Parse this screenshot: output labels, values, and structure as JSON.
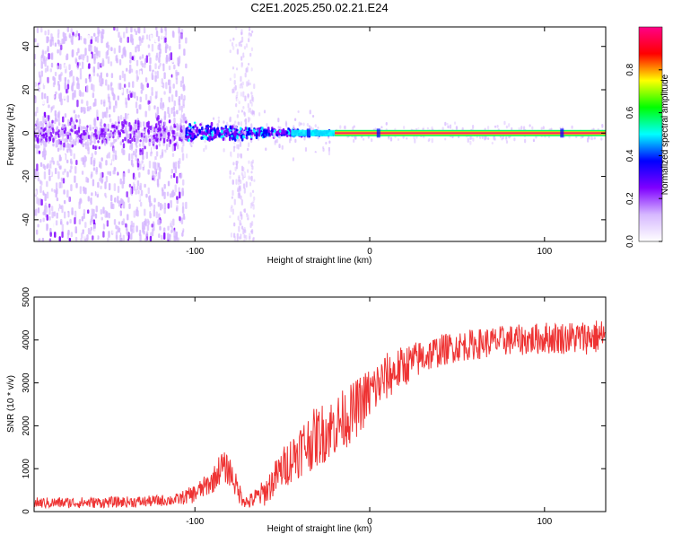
{
  "title": "C2E1.2025.250.02.21.E24",
  "chart_data": [
    {
      "type": "heatmap",
      "name": "spectrogram",
      "xlabel": "Height of straight line (km)",
      "ylabel": "Frequency (Hz)",
      "xlim": [
        -192,
        135
      ],
      "ylim": [
        -50,
        49
      ],
      "xticks": [
        -100,
        0,
        100
      ],
      "yticks": [
        -40,
        -20,
        0,
        20,
        40
      ],
      "colorbar": {
        "label": "Normalized spectral amplitude",
        "range": [
          0,
          1
        ],
        "ticks": [
          0.0,
          0.2,
          0.4,
          0.6,
          0.8
        ],
        "colors": [
          "#ffffff",
          "#d6b8ff",
          "#7f00ff",
          "#0000ff",
          "#00ffff",
          "#00ff00",
          "#ffff00",
          "#ff0000",
          "#ff0088"
        ]
      },
      "features": {
        "carrier_frequency_hz": 0,
        "noise_band_km": [
          -192,
          -105
        ],
        "gap_band_km": [
          -80,
          -66
        ],
        "scintillation_band_km": [
          -105,
          -20
        ],
        "strong_carrier_from_km": -20
      }
    },
    {
      "type": "line",
      "name": "snr",
      "xlabel": "Height of straight line (km)",
      "ylabel": "SNR (10 * v/v)",
      "xlim": [
        -192,
        135
      ],
      "ylim": [
        0,
        5000
      ],
      "xticks": [
        -100,
        0,
        100
      ],
      "yticks": [
        0,
        1000,
        2000,
        3000,
        4000,
        5000
      ],
      "series": [
        {
          "name": "SNR",
          "color": "#ee3333",
          "x": [
            -192,
            -160,
            -130,
            -110,
            -100,
            -90,
            -85,
            -80,
            -75,
            -70,
            -60,
            -50,
            -40,
            -30,
            -20,
            -10,
            0,
            10,
            20,
            30,
            40,
            50,
            60,
            70,
            80,
            90,
            100,
            110,
            120,
            135
          ],
          "y": [
            200,
            210,
            230,
            280,
            420,
            700,
            1050,
            950,
            450,
            200,
            450,
            1000,
            1450,
            1750,
            2000,
            2300,
            2750,
            3150,
            3400,
            3600,
            3750,
            3850,
            3900,
            3950,
            4000,
            4000,
            4050,
            4050,
            4050,
            4100
          ],
          "spread": [
            130,
            130,
            130,
            140,
            220,
            280,
            380,
            360,
            260,
            160,
            320,
            480,
            650,
            720,
            720,
            700,
            650,
            560,
            480,
            420,
            380,
            360,
            360,
            360,
            360,
            360,
            380,
            380,
            400,
            420
          ]
        }
      ]
    }
  ]
}
